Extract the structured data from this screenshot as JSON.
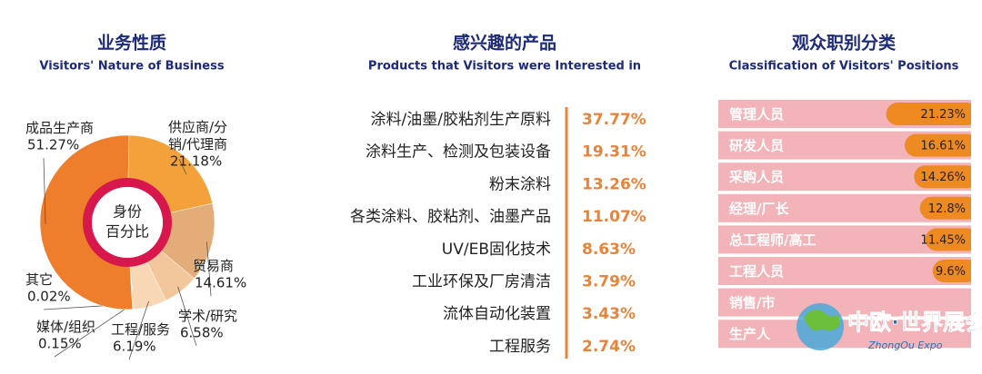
{
  "chart_data": [
    {
      "type": "donut",
      "title": "业务性质",
      "subtitle": "Visitors' Nature of Business",
      "center_label": [
        "身份",
        "百分比"
      ],
      "categories": [
        "供应商/分销/代理商",
        "贸易商",
        "学术/研究",
        "工程/服务",
        "媒体/组织",
        "其它",
        "成品生产商"
      ],
      "values": [
        21.18,
        14.61,
        6.58,
        6.19,
        0.15,
        0.02,
        51.27
      ],
      "value_labels": [
        "21.18%",
        "14.61%",
        "6.58%",
        "6.19%",
        "0.15%",
        "0.02%",
        "51.27%"
      ],
      "colors": [
        "#f3a13a",
        "#e2ad78",
        "#f3c79c",
        "#f8d8b4",
        "#f6e2c8",
        "#f9ecd8",
        "#ee7d2c"
      ],
      "ring_color": "#d8174d"
    },
    {
      "type": "list",
      "title": "感兴趣的产品",
      "subtitle": "Products that Visitors were Interested in",
      "categories": [
        "涂料/油墨/胶粘剂生产原料",
        "涂料生产、检测及包装设备",
        "粉末涂料",
        "各类涂料、胶粘剂、油墨产品",
        "UV/EB固化技术",
        "工业环保及厂房清洁",
        "流体自动化装置",
        "工程服务"
      ],
      "values": [
        37.77,
        19.31,
        13.26,
        11.07,
        8.63,
        3.79,
        3.43,
        2.74
      ],
      "value_labels": [
        "37.77%",
        "19.31%",
        "13.26%",
        "11.07%",
        "8.63%",
        "3.79%",
        "3.43%",
        "2.74%"
      ],
      "color": "#e8843a"
    },
    {
      "type": "bar",
      "title": "观众职别分类",
      "subtitle": "Classification of Visitors' Positions",
      "categories": [
        "管理人员",
        "研发人员",
        "采购人员",
        "经理/厂长",
        "总工程师/高工",
        "工程人员",
        "销售/市",
        "生产人"
      ],
      "values": [
        21.23,
        16.61,
        14.26,
        12.8,
        11.45,
        9.6,
        null,
        null
      ],
      "value_labels": [
        "21.23%",
        "16.61%",
        "14.26%",
        "12.8%",
        "11.45%",
        "9.6%",
        null,
        null
      ],
      "color": "#ee8a22",
      "row_color": "#f2b3b9"
    }
  ],
  "watermark": {
    "title": "中欧·世界展会",
    "subtitle": "ZhongOu Expo"
  }
}
